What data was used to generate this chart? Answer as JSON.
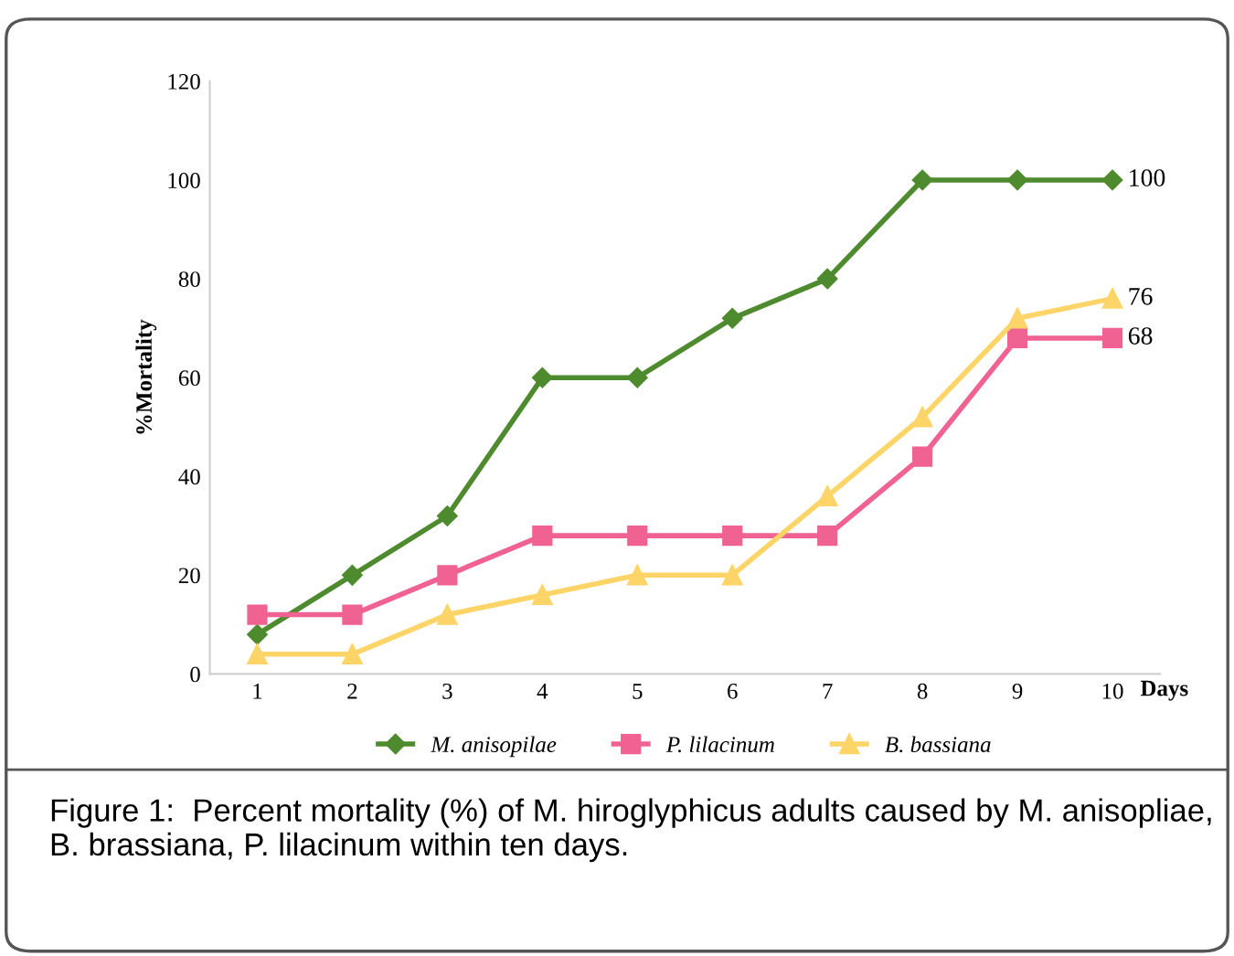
{
  "chart_data": {
    "type": "line",
    "xlabel": "Days",
    "ylabel": "%Mortality",
    "categories": [
      "1",
      "2",
      "3",
      "4",
      "5",
      "6",
      "7",
      "8",
      "9",
      "10"
    ],
    "ylim": [
      0,
      120
    ],
    "yticks": [
      0,
      20,
      40,
      60,
      80,
      100,
      120
    ],
    "grid": false,
    "legend": "bottom",
    "line_style": "solid",
    "series": [
      {
        "name": "M. anisopilae",
        "color": "#4e8a2e",
        "marker": "diamond",
        "values": [
          8,
          20,
          32,
          60,
          60,
          72,
          80,
          100,
          100,
          100
        ],
        "value_labels": [
          null,
          null,
          null,
          null,
          null,
          null,
          null,
          null,
          null,
          "100"
        ]
      },
      {
        "name": "P. lilacinum",
        "color": "#f06292",
        "marker": "square",
        "values": [
          12,
          12,
          20,
          28,
          28,
          28,
          28,
          44,
          68,
          68
        ],
        "value_labels": [
          null,
          null,
          null,
          null,
          null,
          null,
          null,
          null,
          null,
          "68"
        ]
      },
      {
        "name": "B. bassiana",
        "color": "#fdd467",
        "marker": "triangle",
        "values": [
          4,
          4,
          12,
          16,
          20,
          20,
          36,
          52,
          72,
          76
        ],
        "value_labels": [
          null,
          null,
          null,
          null,
          null,
          null,
          null,
          null,
          null,
          "76"
        ]
      }
    ],
    "annotations": [
      "Figure 1:  Percent mortality (%) of M. hiroglyphicus adults caused by M. anisopliae, B. brassiana, P. lilacinum within ten days."
    ]
  }
}
